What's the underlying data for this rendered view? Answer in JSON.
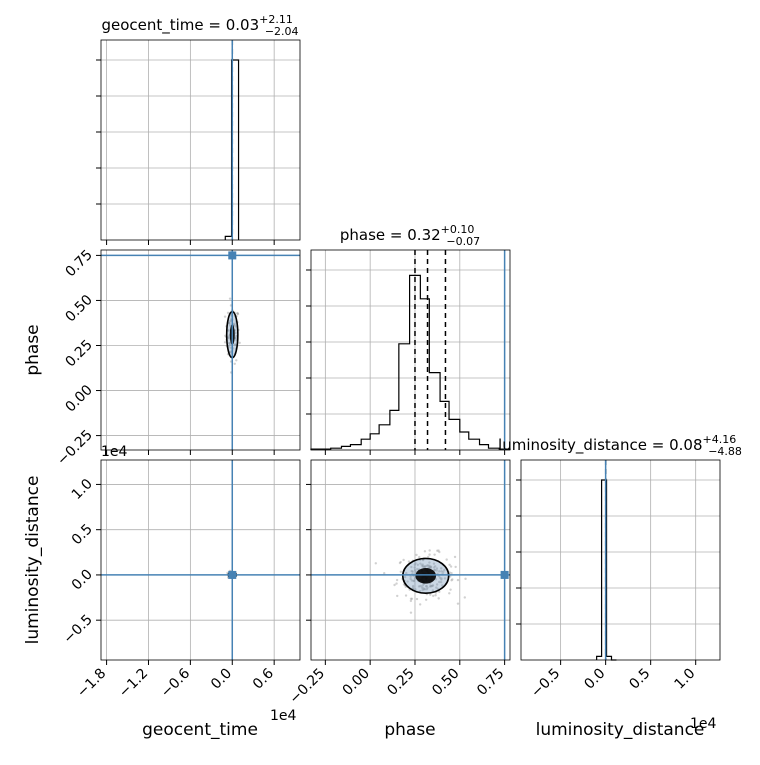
{
  "chart_data": {
    "type": "corner",
    "parameters": [
      "geocent_time",
      "phase",
      "luminosity_distance"
    ],
    "truths": {
      "geocent_time": 0.0,
      "phase": 0.75,
      "luminosity_distance": 0.0
    },
    "truth_color": "#4682b4",
    "line_color": "#000000",
    "grid": true,
    "titles": {
      "geocent_time": {
        "prefix": "geocent_time = 0.03",
        "plus": "+2.11",
        "minus": "−2.04"
      },
      "phase": {
        "prefix": "phase = 0.32",
        "plus": "+0.10",
        "minus": "−0.07"
      },
      "luminosity_distance": {
        "prefix": "luminosity_distance = 0.08",
        "plus": "+4.16",
        "minus": "−4.88"
      }
    },
    "axis_labels": {
      "x": [
        "geocent_time",
        "phase",
        "luminosity_distance"
      ],
      "y": [
        "phase",
        "luminosity_distance"
      ]
    },
    "offset_labels": {
      "geocent_time_x": "1e4",
      "luminosity_distance_x": "1e4",
      "luminosity_distance_y": "1e4"
    },
    "ranges": {
      "geocent_time": [
        -1.88,
        0.97
      ],
      "phase": [
        -0.33,
        0.78
      ],
      "luminosity_distance": [
        -0.94,
        1.27
      ]
    },
    "ticks": {
      "geocent_time": {
        "values": [
          -1.8,
          -1.2,
          -0.6,
          0.0,
          0.6
        ],
        "labels": [
          "−1.8",
          "−1.2",
          "−0.6",
          "0.0",
          "0.6"
        ]
      },
      "phase": {
        "values": [
          -0.25,
          0.0,
          0.25,
          0.5,
          0.75
        ],
        "labels": [
          "−0.25",
          "0.00",
          "0.25",
          "0.50",
          "0.75"
        ]
      },
      "luminosity_distance": {
        "values": [
          -0.5,
          0.0,
          0.5,
          1.0
        ],
        "labels": [
          "−0.5",
          "0.0",
          "0.5",
          "1.0"
        ]
      },
      "luminosity_distance_y": {
        "values": [
          -0.5,
          0.0,
          0.5,
          1.0
        ],
        "labels": [
          "−0.5",
          "0.0",
          "0.5",
          "1.0"
        ]
      }
    },
    "quantiles": {
      "geocent_time": [
        0.0003
      ],
      "phase": [
        0.25,
        0.32,
        0.42
      ],
      "luminosity_distance": [
        0.0008
      ]
    },
    "histograms": {
      "geocent_time": {
        "edges": [
          -0.1,
          -0.01,
          0.09
        ],
        "counts": [
          0.02,
          1.0
        ]
      },
      "phase": {
        "edges": [
          -0.33,
          -0.22,
          -0.16,
          -0.11,
          -0.05,
          0.0,
          0.05,
          0.11,
          0.16,
          0.22,
          0.28,
          0.33,
          0.39,
          0.44,
          0.5,
          0.55,
          0.61,
          0.66,
          0.72,
          0.78
        ],
        "counts": [
          0.005,
          0.01,
          0.02,
          0.03,
          0.06,
          0.09,
          0.14,
          0.22,
          0.59,
          0.97,
          0.84,
          0.43,
          0.27,
          0.17,
          0.1,
          0.06,
          0.03,
          0.01,
          0.005
        ]
      },
      "luminosity_distance": {
        "edges": [
          -0.1,
          -0.045,
          0.01,
          0.065,
          0.12
        ],
        "counts": [
          0.02,
          1.0,
          0.02,
          0.0
        ]
      }
    },
    "samples": {
      "phase_vs_geocent_time": {
        "center": [
          0.0,
          0.31
        ],
        "spread": [
          0.05,
          0.08
        ],
        "n": 90
      },
      "luminosity_distance_vs_geocent_time": {
        "center": [
          0.0,
          0.0
        ],
        "spread": [
          0.03,
          0.02
        ],
        "n": 40
      },
      "luminosity_distance_vs_phase": {
        "center": [
          0.31,
          -0.01
        ],
        "spread": [
          0.08,
          0.12
        ],
        "n": 200
      }
    }
  }
}
